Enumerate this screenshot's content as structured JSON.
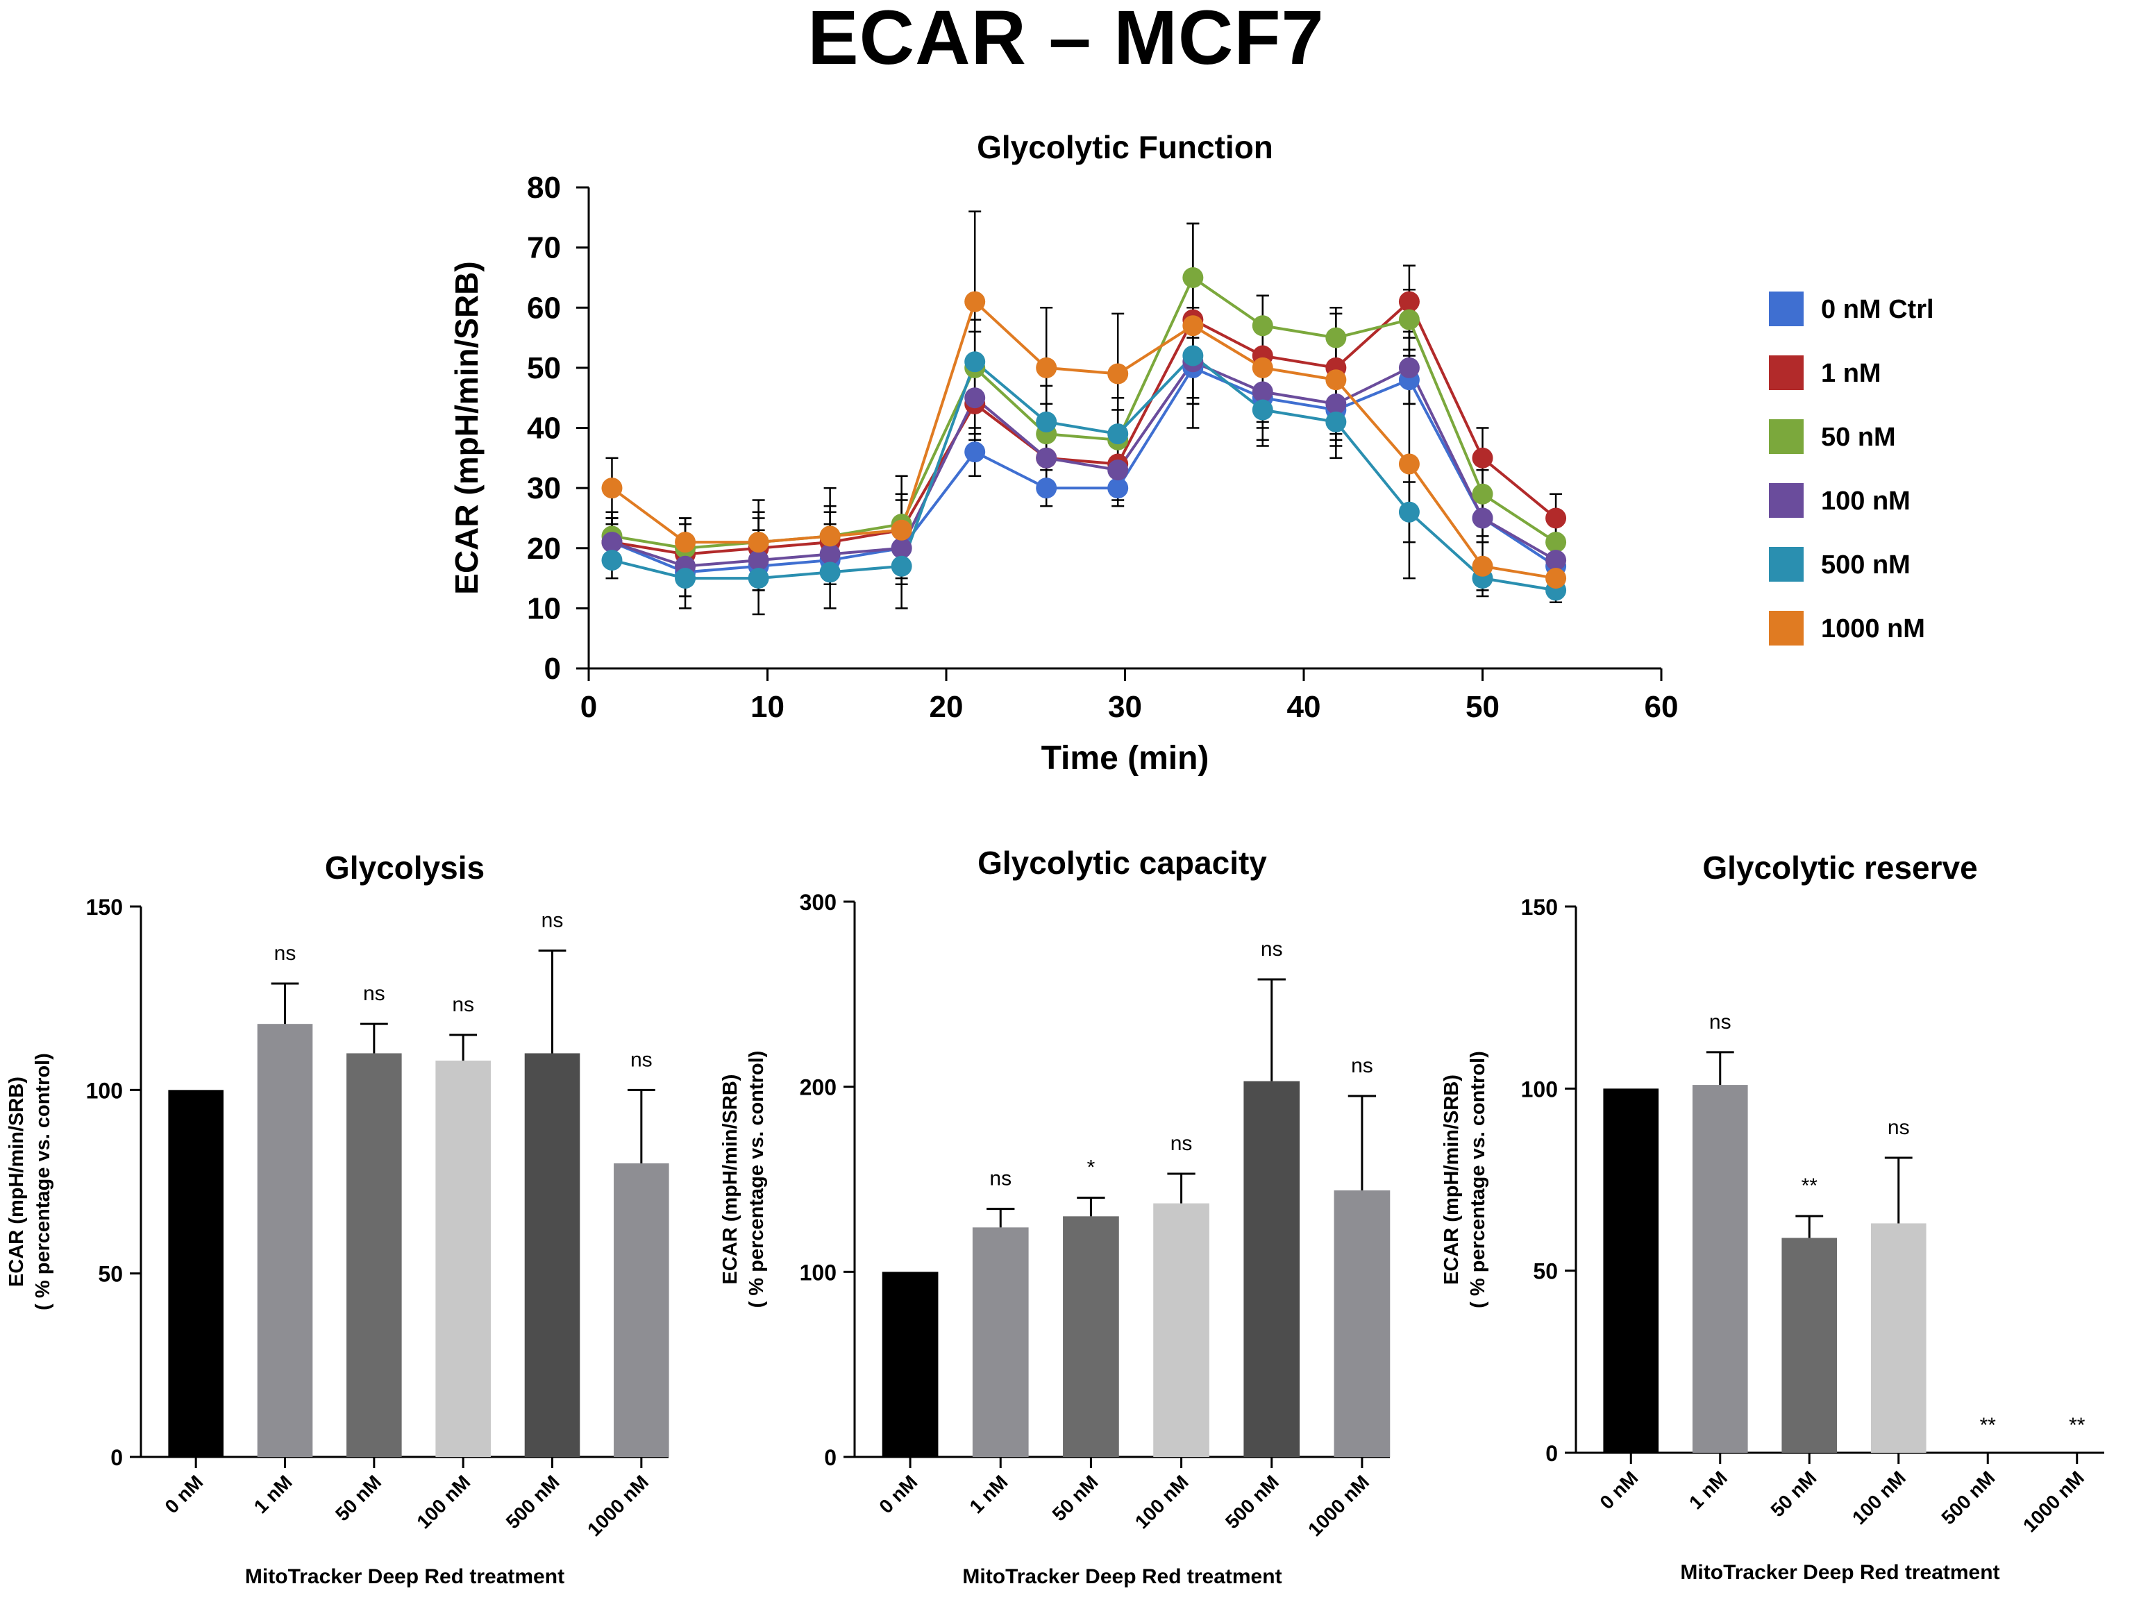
{
  "figure_title": "ECAR – MCF7",
  "chart_data": [
    {
      "id": "glycolytic-function",
      "type": "line",
      "title": "Glycolytic  Function",
      "xlabel": "Time (min)",
      "ylabel": "ECAR (mpH/min/SRB)",
      "xlim": [
        0,
        60
      ],
      "ylim": [
        0,
        80
      ],
      "xticks": [
        0,
        10,
        20,
        30,
        40,
        50,
        60
      ],
      "yticks": [
        0,
        10,
        20,
        30,
        40,
        50,
        60,
        70,
        80
      ],
      "x": [
        1.3,
        5.4,
        9.5,
        13.5,
        17.5,
        21.6,
        25.6,
        29.6,
        33.8,
        37.7,
        41.8,
        45.9,
        50,
        54.1
      ],
      "legend_position": "right",
      "series": [
        {
          "name": "0 nM Ctrl",
          "color": "#3F6FD1",
          "values": [
            21,
            16,
            17,
            18,
            20,
            36,
            30,
            30,
            50,
            45,
            43,
            48,
            25,
            17
          ],
          "errors": [
            3,
            4,
            4,
            4,
            4,
            4,
            3,
            3,
            5,
            4,
            4,
            4,
            3,
            3
          ]
        },
        {
          "name": "1 nM",
          "color": "#B22A2A",
          "values": [
            21,
            19,
            20,
            21,
            23,
            44,
            35,
            34,
            58,
            52,
            50,
            61,
            35,
            25
          ],
          "errors": [
            4,
            5,
            5,
            5,
            5,
            6,
            5,
            5,
            7,
            6,
            6,
            6,
            5,
            4
          ]
        },
        {
          "name": "50 nM",
          "color": "#7BA83C",
          "values": [
            22,
            20,
            21,
            22,
            24,
            50,
            39,
            38,
            65,
            57,
            55,
            58,
            29,
            21
          ],
          "errors": [
            4,
            5,
            5,
            5,
            5,
            6,
            5,
            5,
            9,
            5,
            5,
            5,
            4,
            3
          ]
        },
        {
          "name": "100 nM",
          "color": "#6A4C9C",
          "values": [
            21,
            17,
            18,
            19,
            20,
            45,
            35,
            33,
            51,
            46,
            44,
            50,
            25,
            18
          ],
          "errors": [
            4,
            5,
            5,
            5,
            5,
            6,
            5,
            5,
            7,
            6,
            6,
            6,
            4,
            3
          ]
        },
        {
          "name": "500 nM",
          "color": "#2A8FB0",
          "values": [
            18,
            15,
            15,
            16,
            17,
            51,
            41,
            39,
            52,
            43,
            41,
            26,
            15,
            13
          ],
          "errors": [
            3,
            5,
            6,
            6,
            7,
            7,
            6,
            6,
            8,
            6,
            6,
            5,
            3,
            2
          ]
        },
        {
          "name": "1000 nM",
          "color": "#E07B22",
          "values": [
            30,
            21,
            21,
            22,
            23,
            61,
            50,
            49,
            57,
            50,
            48,
            34,
            17,
            15
          ],
          "errors": [
            5,
            4,
            7,
            8,
            9,
            15,
            10,
            10,
            17,
            12,
            11,
            19,
            4,
            2
          ]
        }
      ]
    },
    {
      "id": "glycolysis",
      "type": "bar",
      "title": "Glycolysis",
      "xlabel": "MitoTracker Deep Red treatment",
      "ylabel_line1": "ECAR (mpH/min/SRB)",
      "ylabel_line2": "( % percentage vs. control)",
      "ylim": [
        0,
        150
      ],
      "yticks": [
        0,
        50,
        100,
        150
      ],
      "categories": [
        "0 nM",
        "1 nM",
        "50 nM",
        "100 nM",
        "500 nM",
        "1000 nM"
      ],
      "values": [
        100,
        118,
        110,
        108,
        110,
        80
      ],
      "errors": [
        0,
        11,
        8,
        7,
        28,
        20
      ],
      "annotations": [
        "",
        "ns",
        "ns",
        "ns",
        "ns",
        "ns"
      ],
      "colors": [
        "#000000",
        "#8E8E93",
        "#6B6B6B",
        "#C8C8C8",
        "#4D4D4D",
        "#8E8E93"
      ]
    },
    {
      "id": "glycolytic-capacity",
      "type": "bar",
      "title": "Glycolytic  capacity",
      "xlabel": "MitoTracker Deep Red treatment",
      "ylabel_line1": "ECAR (mpH/min/SRB)",
      "ylabel_line2": "( % percentage vs. control)",
      "ylim": [
        0,
        300
      ],
      "yticks": [
        0,
        100,
        200,
        300
      ],
      "categories": [
        "0 nM",
        "1 nM",
        "50 nM",
        "100 nM",
        "500 nM",
        "1000 nM"
      ],
      "values": [
        100,
        124,
        130,
        137,
        203,
        144
      ],
      "errors": [
        0,
        10,
        10,
        16,
        55,
        51
      ],
      "annotations": [
        "",
        "ns",
        "*",
        "ns",
        "ns",
        "ns"
      ],
      "colors": [
        "#000000",
        "#8E8E93",
        "#6B6B6B",
        "#C8C8C8",
        "#4D4D4D",
        "#8E8E93"
      ]
    },
    {
      "id": "glycolytic-reserve",
      "type": "bar",
      "title": "Glycolytic  reserve",
      "xlabel": "MitoTracker Deep Red treatment",
      "ylabel_line1": "ECAR (mpH/min/SRB)",
      "ylabel_line2": "( % percentage vs. control)",
      "ylim": [
        0,
        150
      ],
      "yticks": [
        0,
        50,
        100,
        150
      ],
      "categories": [
        "0 nM",
        "1 nM",
        "50 nM",
        "100 nM",
        "500 nM",
        "1000 nM"
      ],
      "values": [
        100,
        101,
        59,
        63,
        0,
        0
      ],
      "errors": [
        0,
        9,
        6,
        18,
        0,
        0
      ],
      "annotations": [
        "",
        "ns",
        "**",
        "ns",
        "**",
        "**"
      ],
      "colors": [
        "#000000",
        "#8E8E93",
        "#6B6B6B",
        "#C8C8C8",
        "#4D4D4D",
        "#8E8E93"
      ]
    }
  ]
}
